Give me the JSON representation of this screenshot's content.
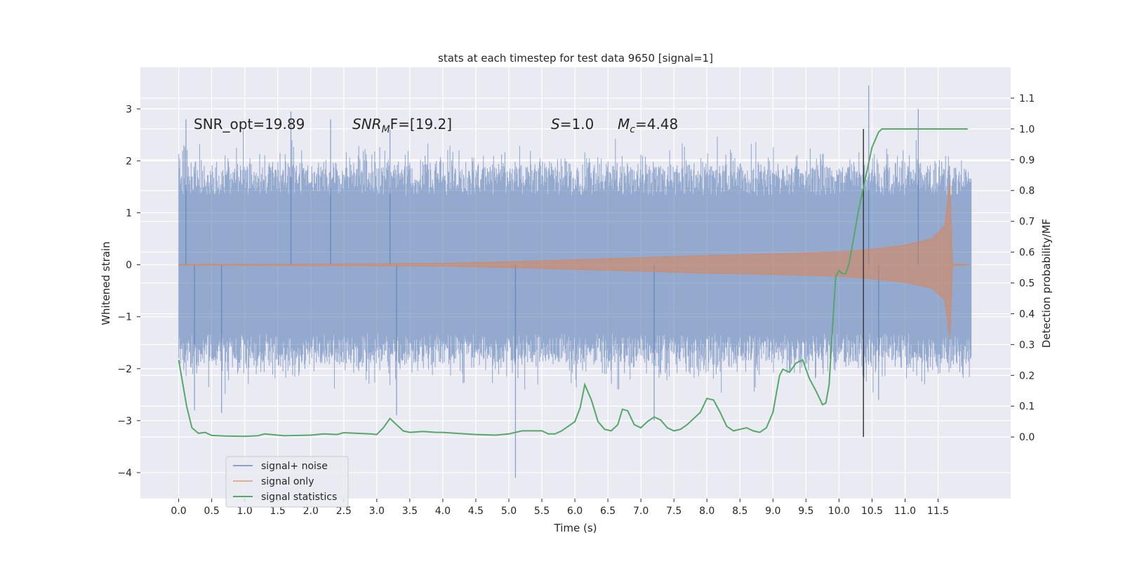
{
  "chart_data": {
    "type": "line",
    "title": "stats at each timestep for test data 9650 [signal=1]",
    "xlabel": "Time (s)",
    "ylabel_left": "Whitened strain",
    "ylabel_right": "Detection probability/MF",
    "xlim": [
      -0.58,
      12.6
    ],
    "ylim_left": [
      -4.5,
      3.8
    ],
    "ylim_right": [
      -0.2,
      1.2
    ],
    "x_ticks": [
      0.0,
      0.5,
      1.0,
      1.5,
      2.0,
      2.5,
      3.0,
      3.5,
      4.0,
      4.5,
      5.0,
      5.5,
      6.0,
      6.5,
      7.0,
      7.5,
      8.0,
      8.5,
      9.0,
      9.5,
      10.0,
      10.5,
      11.0,
      11.5
    ],
    "x_tick_labels": [
      "0.0",
      "0.5",
      "1.0",
      "1.5",
      "2.0",
      "2.5",
      "3.0",
      "3.5",
      "4.0",
      "4.5",
      "5.0",
      "5.5",
      "6.0",
      "6.5",
      "7.0",
      "7.5",
      "8.0",
      "8.5",
      "9.0",
      "9.5",
      "10.0",
      "10.5",
      "11.0",
      "11.5"
    ],
    "y_left_ticks": [
      3,
      2,
      1,
      0,
      -1,
      -2,
      -3,
      -4
    ],
    "y_left_tick_labels": [
      "3",
      "2",
      "1",
      "0",
      "−1",
      "−2",
      "−3",
      "−4"
    ],
    "y_right_ticks": [
      1.1,
      1.0,
      0.9,
      0.8,
      0.7,
      0.6,
      0.5,
      0.4,
      0.3,
      0.2,
      0.1,
      0.0
    ],
    "y_right_tick_labels": [
      "1.1",
      "1.0",
      "0.9",
      "0.8",
      "0.7",
      "0.6",
      "0.5",
      "0.4",
      "0.3",
      "0.2",
      "0.1",
      "0.0"
    ],
    "grid": true,
    "legend_position": "lower-left",
    "annotations": {
      "snr_opt": "SNR_opt=19.89",
      "snr_mf_base": "SNR",
      "snr_mf_sub": "M",
      "snr_mf_rest": "F=[19.2]",
      "s_italic": "S",
      "s_value": "=1.0",
      "mc_base": "M",
      "mc_sub": "c",
      "mc_value": "=4.48"
    },
    "vertical_line_x": 10.37,
    "series": [
      {
        "name": "signal+ noise",
        "color": "#4c72b0",
        "x_range": [
          0.0,
          12.0
        ],
        "envelope_upper_typical": 1.9,
        "envelope_lower_typical": -1.9,
        "peaks": [
          [
            0.11,
            2.8
          ],
          [
            1.7,
            2.95
          ],
          [
            2.3,
            2.8
          ],
          [
            3.2,
            2.6
          ],
          [
            10.45,
            3.45
          ],
          [
            11.2,
            3.0
          ],
          [
            5.1,
            -4.1
          ],
          [
            0.24,
            -2.8
          ],
          [
            0.65,
            -2.85
          ],
          [
            3.3,
            -2.9
          ],
          [
            7.2,
            -3.0
          ],
          [
            10.6,
            -2.6
          ]
        ]
      },
      {
        "name": "signal only",
        "color": "#dd8452",
        "x_range": [
          0.0,
          12.0
        ],
        "amplitude_points": [
          [
            0.0,
            0.01
          ],
          [
            2.0,
            0.015
          ],
          [
            4.0,
            0.03
          ],
          [
            5.0,
            0.06
          ],
          [
            6.0,
            0.1
          ],
          [
            7.0,
            0.14
          ],
          [
            8.0,
            0.18
          ],
          [
            9.0,
            0.21
          ],
          [
            10.0,
            0.25
          ],
          [
            10.5,
            0.3
          ],
          [
            11.0,
            0.38
          ],
          [
            11.4,
            0.5
          ],
          [
            11.6,
            0.75
          ],
          [
            11.68,
            1.6
          ],
          [
            11.72,
            0.02
          ],
          [
            12.0,
            0.0
          ]
        ]
      },
      {
        "name": "signal statistics",
        "color": "#55a868",
        "axis": "right",
        "x": [
          0.0,
          0.12,
          0.2,
          0.3,
          0.4,
          0.5,
          0.7,
          1.0,
          1.2,
          1.3,
          1.4,
          1.6,
          2.0,
          2.2,
          2.4,
          2.5,
          2.7,
          2.9,
          3.0,
          3.1,
          3.2,
          3.3,
          3.4,
          3.5,
          3.7,
          3.9,
          4.0,
          4.2,
          4.5,
          4.8,
          5.0,
          5.2,
          5.4,
          5.5,
          5.6,
          5.7,
          5.8,
          5.9,
          6.0,
          6.08,
          6.15,
          6.25,
          6.35,
          6.45,
          6.55,
          6.65,
          6.72,
          6.8,
          6.9,
          7.0,
          7.1,
          7.2,
          7.3,
          7.4,
          7.5,
          7.6,
          7.7,
          7.8,
          7.9,
          8.0,
          8.1,
          8.2,
          8.3,
          8.4,
          8.5,
          8.6,
          8.7,
          8.8,
          8.9,
          9.0,
          9.1,
          9.15,
          9.25,
          9.35,
          9.45,
          9.55,
          9.65,
          9.75,
          9.8,
          9.85,
          9.9,
          9.95,
          10.0,
          10.05,
          10.1,
          10.15,
          10.2,
          10.3,
          10.4,
          10.5,
          10.6,
          10.65,
          10.7,
          10.8,
          11.0,
          11.5,
          11.95
        ],
        "y": [
          0.25,
          0.1,
          0.03,
          0.012,
          0.015,
          0.005,
          0.003,
          0.002,
          0.004,
          0.01,
          0.008,
          0.004,
          0.006,
          0.01,
          0.008,
          0.014,
          0.012,
          0.01,
          0.008,
          0.03,
          0.06,
          0.04,
          0.02,
          0.015,
          0.018,
          0.015,
          0.015,
          0.012,
          0.008,
          0.006,
          0.01,
          0.02,
          0.02,
          0.02,
          0.01,
          0.01,
          0.02,
          0.035,
          0.05,
          0.095,
          0.17,
          0.12,
          0.05,
          0.025,
          0.02,
          0.04,
          0.09,
          0.085,
          0.04,
          0.03,
          0.05,
          0.065,
          0.055,
          0.03,
          0.02,
          0.025,
          0.04,
          0.06,
          0.08,
          0.125,
          0.12,
          0.08,
          0.035,
          0.02,
          0.025,
          0.03,
          0.02,
          0.015,
          0.03,
          0.08,
          0.2,
          0.22,
          0.21,
          0.24,
          0.25,
          0.19,
          0.15,
          0.105,
          0.11,
          0.17,
          0.35,
          0.52,
          0.54,
          0.53,
          0.53,
          0.56,
          0.62,
          0.74,
          0.84,
          0.94,
          0.99,
          1.0,
          1.0,
          1.0,
          1.0,
          1.0,
          1.0
        ]
      }
    ]
  }
}
